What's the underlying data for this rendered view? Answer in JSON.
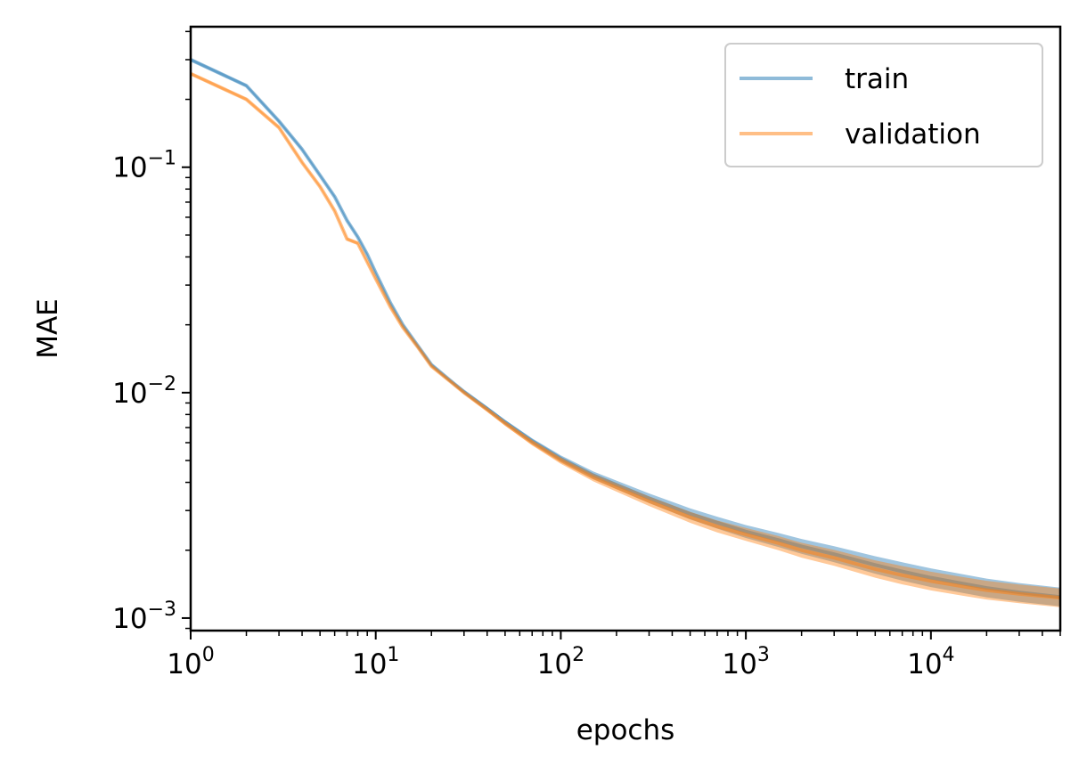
{
  "chart_data": {
    "type": "line",
    "xlabel": "epochs",
    "ylabel": "MAE",
    "xscale": "log",
    "yscale": "log",
    "xlim": [
      1,
      50000
    ],
    "ylim": [
      0.00088,
      0.42
    ],
    "grid": false,
    "legend_position": "top-right",
    "x_major_ticks": [
      {
        "value": 1,
        "label_base": "10",
        "label_exp": "0"
      },
      {
        "value": 10,
        "label_base": "10",
        "label_exp": "1"
      },
      {
        "value": 100,
        "label_base": "10",
        "label_exp": "2"
      },
      {
        "value": 1000,
        "label_base": "10",
        "label_exp": "3"
      },
      {
        "value": 10000,
        "label_base": "10",
        "label_exp": "4"
      }
    ],
    "y_major_ticks": [
      {
        "value": 0.1,
        "label_base": "10",
        "label_exp": "−1"
      },
      {
        "value": 0.01,
        "label_base": "10",
        "label_exp": "−2"
      },
      {
        "value": 0.001,
        "label_base": "10",
        "label_exp": "−3"
      }
    ],
    "series": [
      {
        "name": "train",
        "color": "#1f77b4",
        "opacity": 0.5,
        "x": [
          1,
          2,
          3,
          4,
          5,
          6,
          7,
          8,
          9,
          10,
          12,
          14,
          17,
          20,
          25,
          30,
          40,
          50,
          70,
          100,
          150,
          200,
          300,
          500,
          700,
          1000,
          1500,
          2000,
          3000,
          5000,
          7000,
          10000,
          15000,
          20000,
          30000,
          50000
        ],
        "y": [
          0.3,
          0.23,
          0.16,
          0.12,
          0.092,
          0.074,
          0.058,
          0.049,
          0.041,
          0.034,
          0.025,
          0.02,
          0.016,
          0.0133,
          0.0114,
          0.0101,
          0.0085,
          0.0074,
          0.0061,
          0.0051,
          0.0043,
          0.0039,
          0.0034,
          0.0029,
          0.00265,
          0.00242,
          0.00222,
          0.00208,
          0.00192,
          0.00172,
          0.00161,
          0.00151,
          0.00142,
          0.00136,
          0.0013,
          0.00124
        ]
      },
      {
        "name": "validation",
        "color": "#ff7f0e",
        "opacity": 0.5,
        "x": [
          1,
          2,
          3,
          4,
          5,
          6,
          7,
          8,
          9,
          10,
          12,
          14,
          17,
          20,
          25,
          30,
          40,
          50,
          70,
          100,
          150,
          200,
          300,
          500,
          700,
          1000,
          1500,
          2000,
          3000,
          5000,
          7000,
          10000,
          15000,
          20000,
          30000,
          50000
        ],
        "y": [
          0.26,
          0.2,
          0.15,
          0.105,
          0.082,
          0.064,
          0.048,
          0.046,
          0.038,
          0.032,
          0.024,
          0.0195,
          0.0158,
          0.0131,
          0.0113,
          0.01,
          0.0084,
          0.0073,
          0.006,
          0.005,
          0.0042,
          0.0038,
          0.0033,
          0.0028,
          0.00255,
          0.00235,
          0.00215,
          0.002,
          0.00185,
          0.00165,
          0.00155,
          0.00146,
          0.00138,
          0.00133,
          0.00128,
          0.00123
        ]
      }
    ]
  }
}
